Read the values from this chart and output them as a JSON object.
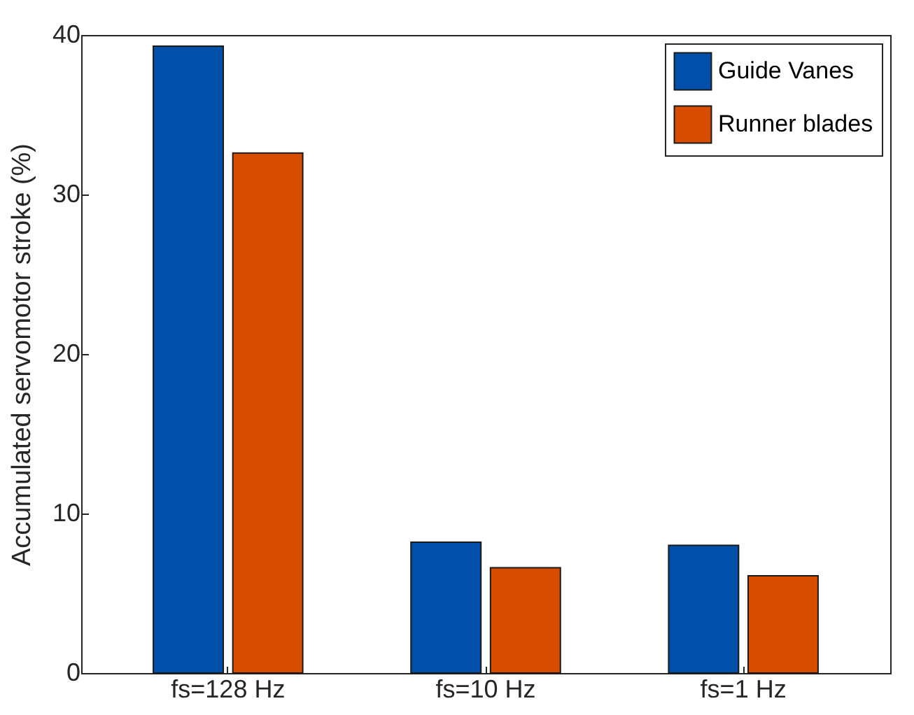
{
  "chart_data": {
    "type": "bar",
    "ylabel": "Accumulated servomotor stroke (%)",
    "categories": [
      "fs=128 Hz",
      "fs=10 Hz",
      "fs=1 Hz"
    ],
    "series": [
      {
        "name": "Guide Vanes",
        "color": "#0050aa",
        "values": [
          39.3,
          8.2,
          8.0
        ]
      },
      {
        "name": "Runner blades",
        "color": "#d84c00",
        "values": [
          32.6,
          6.6,
          6.1
        ]
      }
    ],
    "ylim": [
      0,
      40
    ],
    "yticks": [
      0,
      10,
      20,
      30,
      40
    ],
    "grid": false,
    "legend": "top right"
  }
}
